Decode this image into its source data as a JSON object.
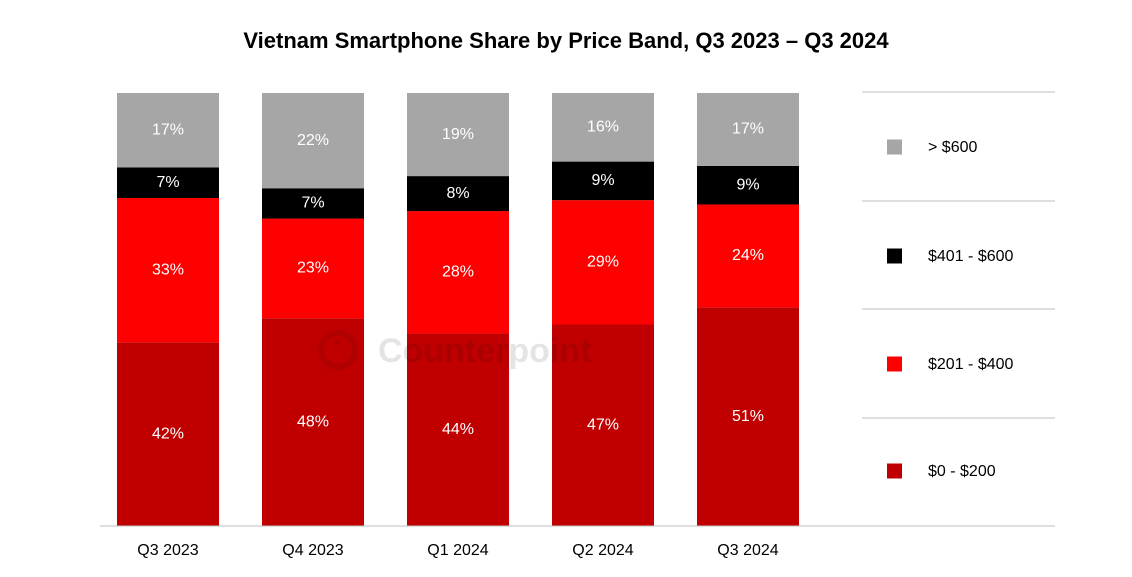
{
  "chart_data": {
    "type": "bar",
    "stacked": true,
    "title": "Vietnam Smartphone Share by Price Band, Q3 2023 – Q3 2024",
    "xlabel": "",
    "ylabel": "",
    "ylim": [
      0,
      100
    ],
    "grid": false,
    "legend_placement": "right",
    "categories": [
      "Q3 2023",
      "Q4 2023",
      "Q1 2024",
      "Q2 2024",
      "Q3 2024"
    ],
    "series": [
      {
        "name": "$0 - $200",
        "color": "#C00000",
        "values": [
          42,
          48,
          44,
          47,
          51
        ]
      },
      {
        "name": "$201 - $400",
        "color": "#FF0000",
        "values": [
          33,
          23,
          28,
          29,
          24
        ]
      },
      {
        "name": "$401 - $600",
        "color": "#000000",
        "values": [
          7,
          7,
          8,
          9,
          9
        ]
      },
      {
        "name": "> $600",
        "color": "#A6A6A6",
        "values": [
          17,
          22,
          19,
          16,
          17
        ]
      }
    ],
    "value_suffix": "%"
  },
  "watermark": "Counterpoint"
}
